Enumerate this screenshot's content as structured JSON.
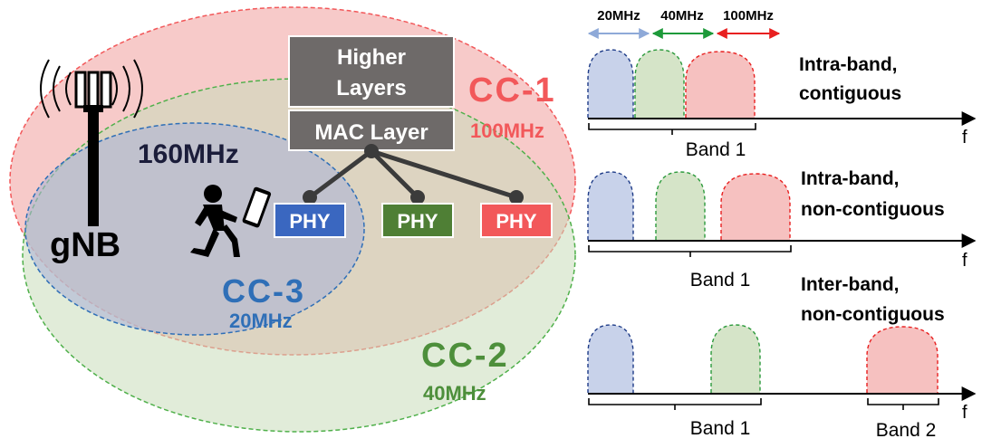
{
  "colors": {
    "cc1": "#f2585a",
    "cc1_fill": "#f6c1c0",
    "cc2": "#4d8f3b",
    "cc2_fill": "#d6e6cc",
    "cc3": "#2f6fb7",
    "cc3_fill": "#bcc7df",
    "higher_layers_bg": "#6e6a69",
    "phy_blue": "#3a67c0",
    "phy_green": "#4f7f35",
    "phy_red": "#f2585a"
  },
  "left": {
    "gnb_label": "gNB",
    "bandwidth_160": "160MHz",
    "stack": {
      "higher_layers": [
        "Higher",
        "Layers"
      ],
      "mac_layer": "MAC Layer",
      "phys": [
        "PHY",
        "PHY",
        "PHY"
      ]
    },
    "cc1": {
      "name": "CC-1",
      "bw": "100MHz"
    },
    "cc2": {
      "name": "CC-2",
      "bw": "40MHz"
    },
    "cc3": {
      "name": "CC-3",
      "bw": "20MHz"
    }
  },
  "right": {
    "bw_legend": [
      "20MHz",
      "40MHz",
      "100MHz"
    ],
    "axis_symbol": "f",
    "panels": [
      {
        "title": [
          "Intra-band,",
          "contiguous"
        ],
        "bands": [
          "Band 1"
        ]
      },
      {
        "title": [
          "Intra-band,",
          "non-contiguous"
        ],
        "bands": [
          "Band 1"
        ]
      },
      {
        "title": [
          "Inter-band,",
          "non-contiguous"
        ],
        "bands": [
          "Band 1",
          "Band 2"
        ]
      }
    ]
  }
}
